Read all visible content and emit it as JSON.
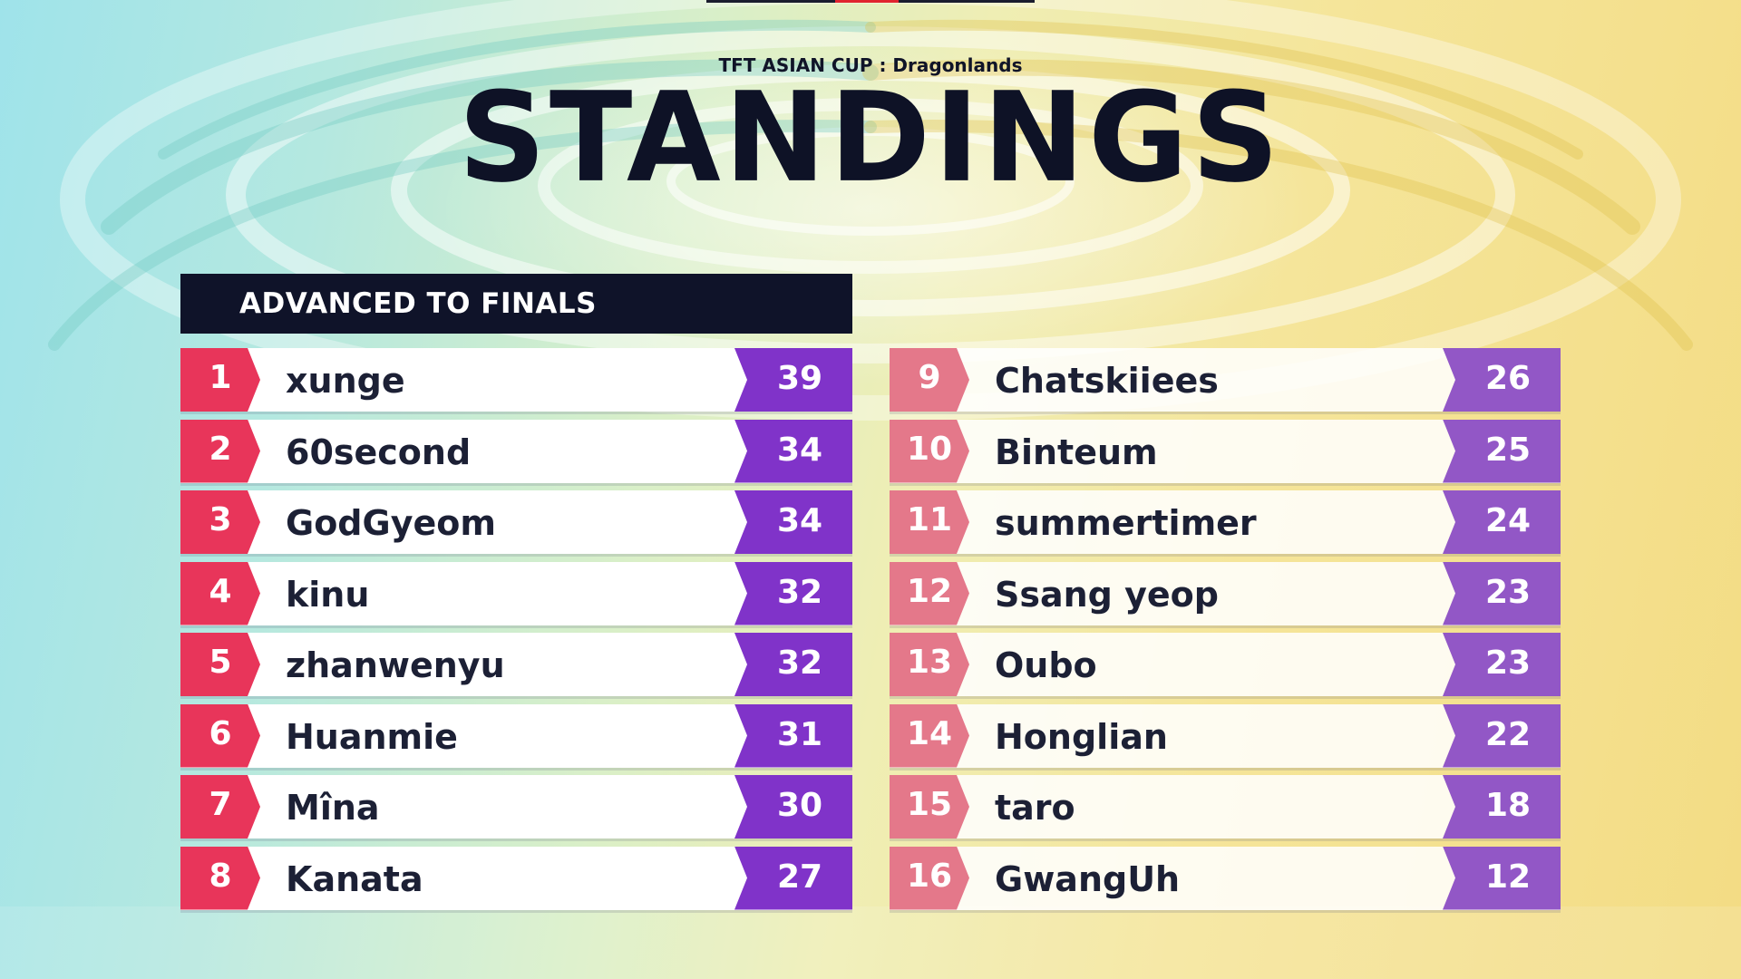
{
  "header": {
    "subtitle": "TFT ASIAN CUP : Dragonlands",
    "title": "STANDINGS",
    "section_label": "ADVANCED TO FINALS"
  },
  "colors": {
    "advanced_rank": "#e8355a",
    "advanced_score": "#8033c9",
    "other_rank": "#e4788a",
    "other_score": "#9257c6",
    "header_bg": "#0f1329"
  },
  "advanced": [
    {
      "rank": "1",
      "name": "xunge",
      "score": "39"
    },
    {
      "rank": "2",
      "name": "60second",
      "score": "34"
    },
    {
      "rank": "3",
      "name": "GodGyeom",
      "score": "34"
    },
    {
      "rank": "4",
      "name": "kinu",
      "score": "32"
    },
    {
      "rank": "5",
      "name": "zhanwenyu",
      "score": "32"
    },
    {
      "rank": "6",
      "name": "Huanmie",
      "score": "31"
    },
    {
      "rank": "7",
      "name": "Mîna",
      "score": "30"
    },
    {
      "rank": "8",
      "name": "Kanata",
      "score": "27"
    }
  ],
  "others": [
    {
      "rank": "9",
      "name": "Chatskiiees",
      "score": "26"
    },
    {
      "rank": "10",
      "name": "Binteum",
      "score": "25"
    },
    {
      "rank": "11",
      "name": "summertimer",
      "score": "24"
    },
    {
      "rank": "12",
      "name": "Ssang yeop",
      "score": "23"
    },
    {
      "rank": "13",
      "name": "Oubo",
      "score": "23"
    },
    {
      "rank": "14",
      "name": "Honglian",
      "score": "22"
    },
    {
      "rank": "15",
      "name": "taro",
      "score": "18"
    },
    {
      "rank": "16",
      "name": "GwangUh",
      "score": "12"
    }
  ]
}
